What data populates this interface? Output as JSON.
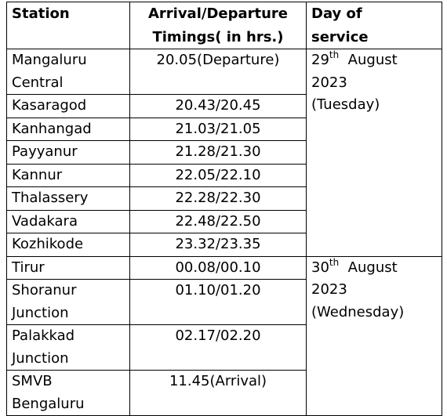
{
  "table": {
    "headers": [
      [
        "Station"
      ],
      [
        "Arrival/Departure",
        "Timings( in hrs.)"
      ],
      [
        "Day of",
        "service"
      ]
    ],
    "groups": [
      {
        "day": {
          "date": "29",
          "suffix": "th",
          "month": "August",
          "year": "2023",
          "weekday": "(Tuesday)"
        },
        "rows": [
          {
            "station": [
              "Mangaluru",
              "Central"
            ],
            "timing": "20.05(Departure)"
          },
          {
            "station": [
              "Kasaragod"
            ],
            "timing": "20.43/20.45"
          },
          {
            "station": [
              "Kanhangad"
            ],
            "timing": "21.03/21.05"
          },
          {
            "station": [
              "Payyanur"
            ],
            "timing": "21.28/21.30"
          },
          {
            "station": [
              "Kannur"
            ],
            "timing": "22.05/22.10"
          },
          {
            "station": [
              "Thalassery"
            ],
            "timing": "22.28/22.30"
          },
          {
            "station": [
              "Vadakara"
            ],
            "timing": "22.48/22.50"
          },
          {
            "station": [
              "Kozhikode"
            ],
            "timing": "23.32/23.35"
          }
        ]
      },
      {
        "day": {
          "date": "30",
          "suffix": "th",
          "month": "August",
          "year": "2023",
          "weekday": "(Wednesday)"
        },
        "rows": [
          {
            "station": [
              "Tirur"
            ],
            "timing": "00.08/00.10"
          },
          {
            "station": [
              "Shoranur",
              "Junction"
            ],
            "timing": "01.10/01.20"
          },
          {
            "station": [
              "Palakkad",
              "Junction"
            ],
            "timing": "02.17/02.20"
          },
          {
            "station": [
              "SMVB",
              "Bengaluru"
            ],
            "timing": "11.45(Arrival)"
          }
        ]
      }
    ]
  }
}
